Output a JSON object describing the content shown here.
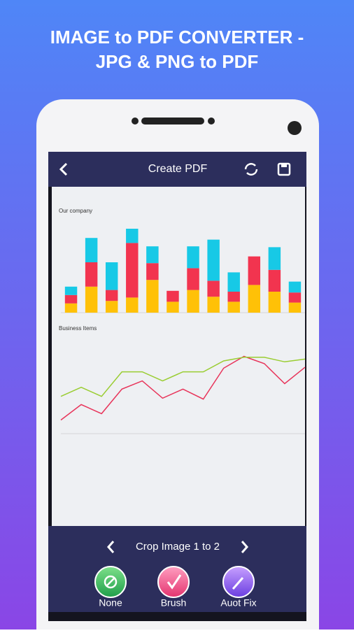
{
  "header": {
    "title_line1": "IMAGE to PDF CONVERTER -",
    "title_line2": "JPG & PNG to PDF"
  },
  "app_bar": {
    "title": "Create PDF"
  },
  "document_photo": {
    "bar_chart": {
      "type": "bar",
      "stacked": true,
      "title": "Our company",
      "ylim": [
        0,
        100
      ],
      "series": [
        {
          "color": "#ffc107",
          "values": [
            11,
            31,
            14,
            18,
            39,
            13,
            27,
            19,
            13,
            33,
            25,
            12
          ]
        },
        {
          "color": "#f2344f",
          "values": [
            10,
            29,
            13,
            65,
            20,
            13,
            26,
            19,
            12,
            34,
            26,
            12
          ]
        },
        {
          "color": "#17c9e6",
          "values": [
            10,
            29,
            33,
            17,
            20,
            0,
            26,
            49,
            23,
            0,
            27,
            13
          ]
        }
      ]
    },
    "line_chart": {
      "type": "line",
      "title": "Business Items",
      "ylim": [
        0,
        100
      ],
      "series": [
        {
          "color": "#e8345a",
          "values": [
            15,
            32,
            22,
            49,
            58,
            39,
            49,
            38,
            72,
            85,
            77,
            55,
            73
          ]
        },
        {
          "color": "#9acd32",
          "values": [
            41,
            51,
            41,
            68,
            68,
            58,
            68,
            68,
            80,
            84,
            84,
            79,
            82
          ]
        }
      ]
    }
  },
  "crop_nav": {
    "label": "Crop Image 1 to 2"
  },
  "tools": [
    {
      "label": "None"
    },
    {
      "label": "Brush"
    },
    {
      "label": "Auot Fix"
    }
  ]
}
